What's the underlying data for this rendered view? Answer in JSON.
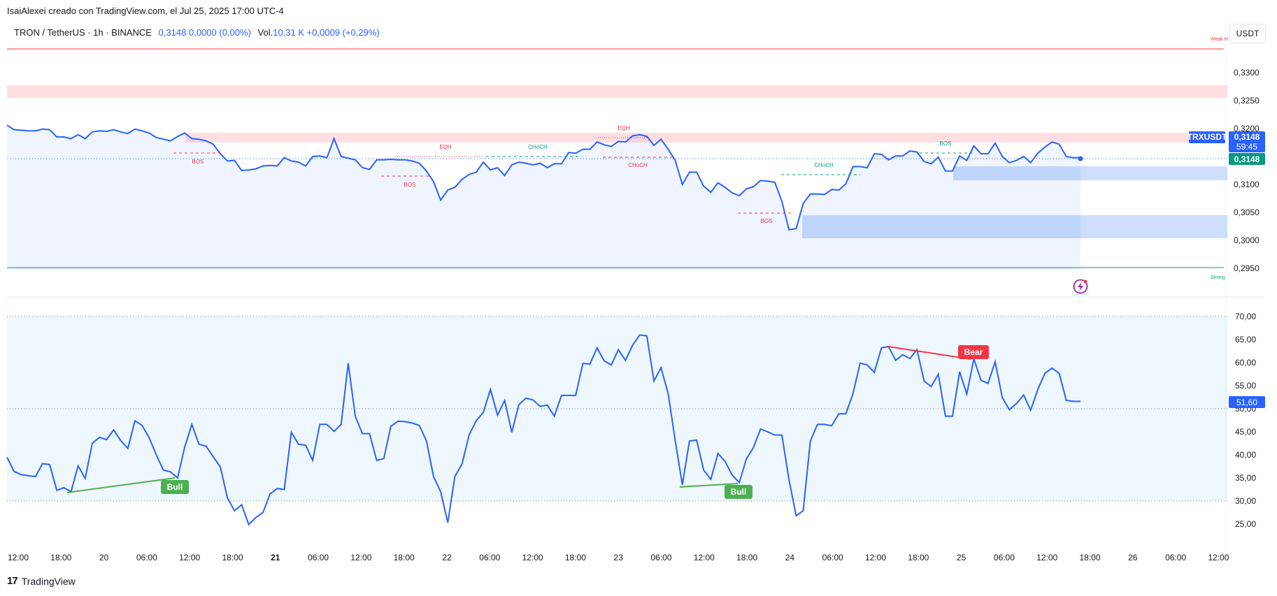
{
  "header": {
    "created_by": "IsaiAlexei creado con TradingView.com, el Jul 25, 2025 17:00 UTC-4"
  },
  "legend": {
    "symbol": "TRON / TetherUS · 1h · BINANCE",
    "price": "0,3148",
    "change": "0,0000 (0,00%)",
    "vol_label": "Vol.",
    "vol_value": "10,31 K",
    "vol_change": "+0,0009 (+0,29%)"
  },
  "unit_button": "USDT",
  "footer": {
    "brand": "TradingView",
    "logo_text": "17"
  },
  "colors": {
    "line": "#2962ff",
    "bull": "#4caf50",
    "bear": "#f23645",
    "bos_red": "#f23645",
    "choch_green": "#089981",
    "zone_red": "#ffcdd2",
    "zone_blue": "#bbd3fb"
  },
  "chart_data": [
    {
      "type": "line",
      "title": "",
      "x_ticks": [
        "12:00",
        "18:00",
        "20",
        "06:00",
        "12:00",
        "18:00",
        "21",
        "06:00",
        "12:00",
        "18:00",
        "22",
        "06:00",
        "12:00",
        "18:00",
        "23",
        "06:00",
        "12:00",
        "18:00",
        "24",
        "06:00",
        "12:00",
        "18:00",
        "25",
        "06:00",
        "12:00",
        "18:00",
        "26",
        "06:00",
        "12:00"
      ],
      "y_ticks": [
        "0,2950",
        "0,3000",
        "0,3050",
        "0,3100",
        "0,3150",
        "0,3200",
        "0,3250",
        "0,3300"
      ],
      "ylim": [
        0.2925,
        0.3345
      ],
      "series": [
        {
          "values": [
            0.3206,
            0.3198,
            0.3197,
            0.3196,
            0.3196,
            0.3199,
            0.3198,
            0.3185,
            0.3185,
            0.3182,
            0.3189,
            0.3182,
            0.3194,
            0.3196,
            0.3195,
            0.3198,
            0.3194,
            0.3191,
            0.3199,
            0.3196,
            0.3192,
            0.3184,
            0.3181,
            0.3178,
            0.3186,
            0.3192,
            0.3182,
            0.3181,
            0.3178,
            0.3172,
            0.3155,
            0.3142,
            0.3143,
            0.3125,
            0.3126,
            0.3128,
            0.3133,
            0.3134,
            0.3133,
            0.3148,
            0.3142,
            0.314,
            0.3133,
            0.315,
            0.3151,
            0.3148,
            0.3182,
            0.315,
            0.3147,
            0.3144,
            0.313,
            0.3127,
            0.3144,
            0.3144,
            0.3145,
            0.3144,
            0.3144,
            0.3142,
            0.3138,
            0.3124,
            0.3105,
            0.3072,
            0.309,
            0.3095,
            0.3109,
            0.3118,
            0.3122,
            0.314,
            0.3126,
            0.313,
            0.3116,
            0.3135,
            0.314,
            0.3138,
            0.3135,
            0.3138,
            0.313,
            0.3137,
            0.3137,
            0.3157,
            0.3156,
            0.3163,
            0.3163,
            0.3176,
            0.3171,
            0.3168,
            0.3177,
            0.3176,
            0.3187,
            0.3189,
            0.3186,
            0.317,
            0.3181,
            0.3163,
            0.3143,
            0.31,
            0.3122,
            0.3122,
            0.3097,
            0.3086,
            0.3103,
            0.3095,
            0.3085,
            0.308,
            0.3092,
            0.3096,
            0.3107,
            0.3106,
            0.3104,
            0.307,
            0.3019,
            0.3021,
            0.3066,
            0.3083,
            0.3083,
            0.3082,
            0.3091,
            0.309,
            0.3101,
            0.3132,
            0.3132,
            0.313,
            0.3155,
            0.3154,
            0.3144,
            0.3151,
            0.3151,
            0.316,
            0.3158,
            0.3141,
            0.3137,
            0.3149,
            0.3124,
            0.3124,
            0.3151,
            0.3143,
            0.3169,
            0.3155,
            0.3155,
            0.3174,
            0.315,
            0.3139,
            0.3143,
            0.315,
            0.3139,
            0.3156,
            0.3167,
            0.3176,
            0.3172,
            0.315,
            0.3148,
            0.3148
          ]
        }
      ],
      "levels": {
        "top_label": "Weak H",
        "bottom_label": "Strong"
      },
      "annotations": [
        "BOS",
        "BOS",
        "EQH",
        "CHoCH",
        "EQH",
        "CHoCH",
        "BOS",
        "CHoCH",
        "BOS"
      ],
      "price_tags": {
        "symbol": "TRXUSDT",
        "price": "0,3148",
        "countdown": "59:45",
        "last": "0,3148"
      }
    },
    {
      "type": "line",
      "title": "",
      "y_ticks": [
        "25,00",
        "30,00",
        "35,00",
        "40,00",
        "45,00",
        "50,00",
        "55,00",
        "60,00",
        "65,00",
        "70,00"
      ],
      "ylim": [
        21.5,
        72.5
      ],
      "bands": [
        30,
        50,
        70
      ],
      "series": [
        {
          "values": [
            39.5,
            36.4,
            35.7,
            35.5,
            35.3,
            38.1,
            37.9,
            32.3,
            32.9,
            32.0,
            37.6,
            34.9,
            42.5,
            43.8,
            43.3,
            45.4,
            43.1,
            41.4,
            47.4,
            46.4,
            43.7,
            40.0,
            36.7,
            36.3,
            35.0,
            41.7,
            46.6,
            42.3,
            41.9,
            39.6,
            37.4,
            30.7,
            27.9,
            29.2,
            24.9,
            26.4,
            27.5,
            31.5,
            32.7,
            32.5,
            44.9,
            42.3,
            42.1,
            38.8,
            46.6,
            46.6,
            45.1,
            46.6,
            59.9,
            48.3,
            44.6,
            44.6,
            38.8,
            39.2,
            46.2,
            47.3,
            47.2,
            46.9,
            46.4,
            43.0,
            35.3,
            32.0,
            25.3,
            35.3,
            38.0,
            44.3,
            47.4,
            49.2,
            54.2,
            48.6,
            51.8,
            44.9,
            50.9,
            52.3,
            51.9,
            50.5,
            50.8,
            48.4,
            52.9,
            52.9,
            52.9,
            59.8,
            59.7,
            63.2,
            60.4,
            59.5,
            62.8,
            60.5,
            63.8,
            66.0,
            65.8,
            56.0,
            58.9,
            53.3,
            43.0,
            33.5,
            43.0,
            43.2,
            36.7,
            34.7,
            40.3,
            38.6,
            35.6,
            34.0,
            39.1,
            41.6,
            45.6,
            45.0,
            44.3,
            44.3,
            34.6,
            26.8,
            27.9,
            43.0,
            46.6,
            46.6,
            46.3,
            48.9,
            48.9,
            53.3,
            59.9,
            59.5,
            57.9,
            63.2,
            63.5,
            60.5,
            61.7,
            60.9,
            62.8,
            56.0,
            54.8,
            57.5,
            48.4,
            48.4,
            58.0,
            53.2,
            60.8,
            56.2,
            55.5,
            60.2,
            52.4,
            49.8,
            51.1,
            53.0,
            49.7,
            54.2,
            57.7,
            58.8,
            57.7,
            51.8,
            51.6,
            51.6
          ]
        }
      ],
      "divergences": [
        {
          "label": "Bull"
        },
        {
          "label": "Bull"
        },
        {
          "label": "Bear"
        }
      ],
      "last_value": "51,60"
    }
  ]
}
